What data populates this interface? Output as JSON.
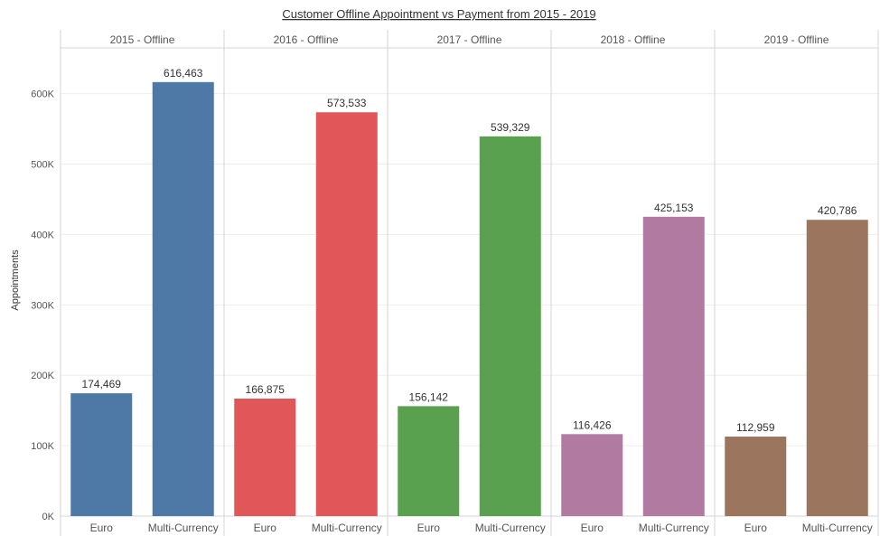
{
  "chart_data": {
    "type": "bar",
    "title": "Customer Offline Appointment vs Payment from 2015 - 2019",
    "ylabel": "Appointments",
    "xlabel": "",
    "ylim": [
      0,
      665000
    ],
    "yticks": [
      0,
      100000,
      200000,
      300000,
      400000,
      500000,
      600000
    ],
    "ytick_labels": [
      "0K",
      "100K",
      "200K",
      "300K",
      "400K",
      "500K",
      "600K"
    ],
    "grid": true,
    "categories": [
      "Euro",
      "Multi-Currency"
    ],
    "panels": [
      {
        "name": "2015 - Offline",
        "color": "#4e79a7",
        "values": [
          174469,
          616463
        ],
        "labels": [
          "174,469",
          "616,463"
        ]
      },
      {
        "name": "2016 - Offline",
        "color": "#e15759",
        "values": [
          166875,
          573533
        ],
        "labels": [
          "166,875",
          "573,533"
        ]
      },
      {
        "name": "2017 - Offline",
        "color": "#59a14f",
        "values": [
          156142,
          539329
        ],
        "labels": [
          "156,142",
          "539,329"
        ]
      },
      {
        "name": "2018 - Offline",
        "color": "#b07aa1",
        "values": [
          116426,
          425153
        ],
        "labels": [
          "116,426",
          "425,153"
        ]
      },
      {
        "name": "2019 - Offline",
        "color": "#9c755f",
        "values": [
          112959,
          420786
        ],
        "labels": [
          "112,959",
          "420,786"
        ]
      }
    ]
  }
}
